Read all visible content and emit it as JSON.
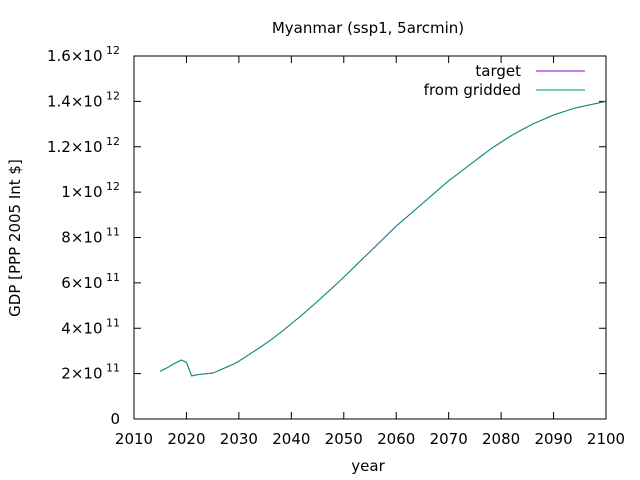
{
  "chart_data": {
    "type": "line",
    "title": "Myanmar (ssp1, 5arcmin)",
    "xlabel": "year",
    "ylabel": "GDP [PPP 2005 Int $]",
    "xlim": [
      2010,
      2100
    ],
    "ylim": [
      0,
      1600000000000.0
    ],
    "grid": false,
    "legend_position": "top-right",
    "x_ticks": [
      {
        "value": 2010,
        "label": "2010"
      },
      {
        "value": 2020,
        "label": "2020"
      },
      {
        "value": 2030,
        "label": "2030"
      },
      {
        "value": 2040,
        "label": "2040"
      },
      {
        "value": 2050,
        "label": "2050"
      },
      {
        "value": 2060,
        "label": "2060"
      },
      {
        "value": 2070,
        "label": "2070"
      },
      {
        "value": 2080,
        "label": "2080"
      },
      {
        "value": 2090,
        "label": "2090"
      },
      {
        "value": 2100,
        "label": "2100"
      }
    ],
    "y_ticks": [
      {
        "value": 0,
        "mantissa": "0",
        "exponent": ""
      },
      {
        "value": 200000000000.0,
        "mantissa": "2×10",
        "exponent": "11"
      },
      {
        "value": 400000000000.0,
        "mantissa": "4×10",
        "exponent": "11"
      },
      {
        "value": 600000000000.0,
        "mantissa": "6×10",
        "exponent": "11"
      },
      {
        "value": 800000000000.0,
        "mantissa": "8×10",
        "exponent": "11"
      },
      {
        "value": 1000000000000.0,
        "mantissa": "1×10",
        "exponent": "12"
      },
      {
        "value": 1200000000000.0,
        "mantissa": "1.2×10",
        "exponent": "12"
      },
      {
        "value": 1400000000000.0,
        "mantissa": "1.4×10",
        "exponent": "12"
      },
      {
        "value": 1600000000000.0,
        "mantissa": "1.6×10",
        "exponent": "12"
      }
    ],
    "series": [
      {
        "name": "target",
        "color": "#9400d3",
        "x": [
          2015,
          2016,
          2017,
          2018,
          2019,
          2020,
          2021,
          2022,
          2023,
          2024,
          2025,
          2026,
          2027,
          2028,
          2029,
          2030,
          2032,
          2034,
          2036,
          2038,
          2040,
          2042,
          2044,
          2046,
          2048,
          2050,
          2052,
          2054,
          2056,
          2058,
          2060,
          2062,
          2064,
          2066,
          2068,
          2070,
          2072,
          2074,
          2076,
          2078,
          2080,
          2082,
          2084,
          2086,
          2088,
          2090,
          2092,
          2094,
          2096,
          2098,
          2100
        ],
        "y": [
          210000000000.0,
          222000000000.0,
          235000000000.0,
          248000000000.0,
          260000000000.0,
          250000000000.0,
          190000000000.0,
          195000000000.0,
          198000000000.0,
          200000000000.0,
          202000000000.0,
          212000000000.0,
          222000000000.0,
          232000000000.0,
          242000000000.0,
          255000000000.0,
          285000000000.0,
          315000000000.0,
          347000000000.0,
          382000000000.0,
          420000000000.0,
          458000000000.0,
          498000000000.0,
          540000000000.0,
          582000000000.0,
          625000000000.0,
          670000000000.0,
          715000000000.0,
          760000000000.0,
          805000000000.0,
          850000000000.0,
          890000000000.0,
          930000000000.0,
          970000000000.0,
          1010000000000.0,
          1050000000000.0,
          1085000000000.0,
          1120000000000.0,
          1155000000000.0,
          1190000000000.0,
          1220000000000.0,
          1250000000000.0,
          1275000000000.0,
          1300000000000.0,
          1320000000000.0,
          1340000000000.0,
          1355000000000.0,
          1370000000000.0,
          1380000000000.0,
          1390000000000.0,
          1400000000000.0
        ]
      },
      {
        "name": "from gridded",
        "color": "#009e73",
        "x": [
          2015,
          2016,
          2017,
          2018,
          2019,
          2020,
          2021,
          2022,
          2023,
          2024,
          2025,
          2026,
          2027,
          2028,
          2029,
          2030,
          2032,
          2034,
          2036,
          2038,
          2040,
          2042,
          2044,
          2046,
          2048,
          2050,
          2052,
          2054,
          2056,
          2058,
          2060,
          2062,
          2064,
          2066,
          2068,
          2070,
          2072,
          2074,
          2076,
          2078,
          2080,
          2082,
          2084,
          2086,
          2088,
          2090,
          2092,
          2094,
          2096,
          2098,
          2100
        ],
        "y": [
          210000000000.0,
          222000000000.0,
          235000000000.0,
          248000000000.0,
          260000000000.0,
          250000000000.0,
          190000000000.0,
          195000000000.0,
          198000000000.0,
          200000000000.0,
          202000000000.0,
          212000000000.0,
          222000000000.0,
          232000000000.0,
          242000000000.0,
          255000000000.0,
          285000000000.0,
          315000000000.0,
          347000000000.0,
          382000000000.0,
          420000000000.0,
          458000000000.0,
          498000000000.0,
          540000000000.0,
          582000000000.0,
          625000000000.0,
          670000000000.0,
          715000000000.0,
          760000000000.0,
          805000000000.0,
          850000000000.0,
          890000000000.0,
          930000000000.0,
          970000000000.0,
          1010000000000.0,
          1050000000000.0,
          1085000000000.0,
          1120000000000.0,
          1155000000000.0,
          1190000000000.0,
          1220000000000.0,
          1250000000000.0,
          1275000000000.0,
          1300000000000.0,
          1320000000000.0,
          1340000000000.0,
          1355000000000.0,
          1370000000000.0,
          1380000000000.0,
          1390000000000.0,
          1400000000000.0
        ]
      }
    ]
  }
}
